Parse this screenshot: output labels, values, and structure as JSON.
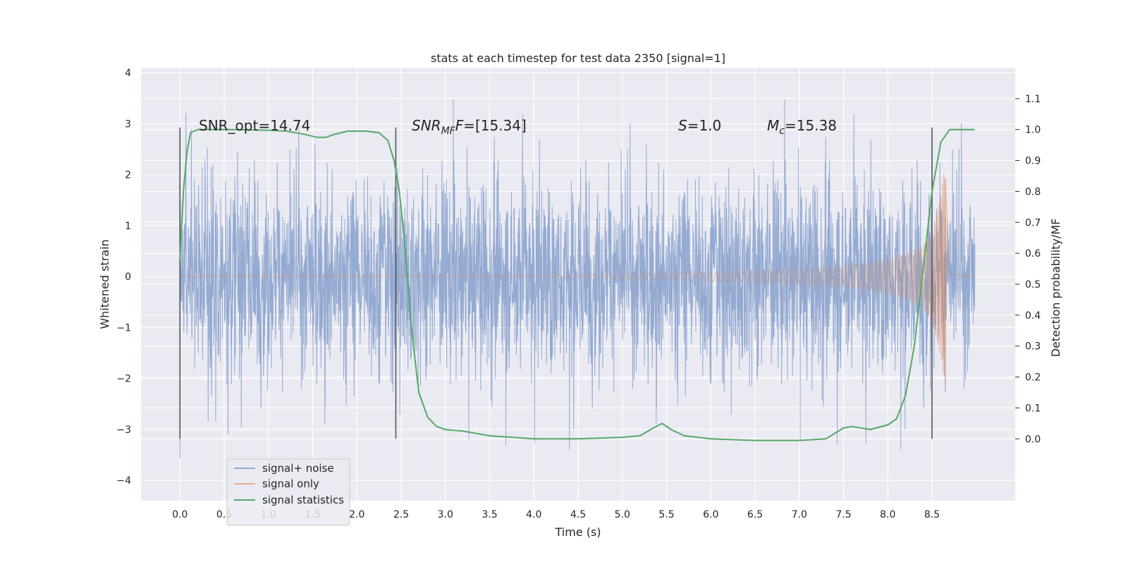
{
  "chart_data": {
    "type": "line",
    "title": "stats at each timestep for test data 2350 [signal=1]",
    "xlabel": "Time (s)",
    "ylabel": "Whitened strain",
    "y2label": "Detection probability/MF",
    "xlim": [
      -0.44,
      9.44
    ],
    "ylim": [
      -4.4,
      4.1
    ],
    "y2lim": [
      -0.2,
      1.2
    ],
    "xticks": [
      "0.0",
      "0.5",
      "1.0",
      "1.5",
      "2.0",
      "2.5",
      "3.0",
      "3.5",
      "4.0",
      "4.5",
      "5.0",
      "5.5",
      "6.0",
      "6.5",
      "7.0",
      "7.5",
      "8.0",
      "8.5"
    ],
    "yticks": [
      "−4",
      "−3",
      "−2",
      "−1",
      "0",
      "1",
      "2",
      "3",
      "4"
    ],
    "y2ticks": [
      "0.0",
      "0.1",
      "0.2",
      "0.3",
      "0.4",
      "0.5",
      "0.6",
      "0.7",
      "0.8",
      "0.9",
      "1.0",
      "1.1"
    ],
    "grid": true,
    "legend_position": "lower-left",
    "annotations": {
      "snr_opt": "SNR_opt=14.74",
      "snr_mf_sym": "SNR",
      "snr_mf_sub": "MF",
      "snr_mf_val": "=[15.34]",
      "s_sym": "S",
      "s_val": "=1.0",
      "mc_sym": "M",
      "mc_sub": "c",
      "mc_val": "=15.38"
    },
    "window_markers_x": [
      0.0,
      2.44,
      8.5
    ],
    "series": [
      {
        "name": "signal+ noise",
        "color": "#8fa6cf",
        "x_range": [
          0.0,
          8.98
        ],
        "envelope_typical": [
          -1.6,
          1.6
        ],
        "envelope_extreme": [
          -4.0,
          3.65
        ]
      },
      {
        "name": "signal only",
        "color": "#dd8452",
        "x": [
          0.0,
          4.0,
          5.0,
          6.0,
          6.5,
          7.0,
          7.5,
          8.0,
          8.2,
          8.4,
          8.5,
          8.6,
          8.65,
          8.7,
          8.98
        ],
        "amplitude": [
          0.0,
          0.02,
          0.05,
          0.1,
          0.12,
          0.15,
          0.2,
          0.33,
          0.45,
          0.6,
          0.9,
          1.6,
          2.25,
          0.05,
          0.0
        ]
      },
      {
        "name": "signal statistics",
        "color": "#55a868",
        "x": [
          0.0,
          0.04,
          0.08,
          0.12,
          0.2,
          0.35,
          0.6,
          0.8,
          1.0,
          1.2,
          1.4,
          1.55,
          1.65,
          1.75,
          1.9,
          2.1,
          2.25,
          2.35,
          2.42,
          2.48,
          2.55,
          2.62,
          2.7,
          2.8,
          2.9,
          3.0,
          3.2,
          3.5,
          4.0,
          4.5,
          5.0,
          5.2,
          5.35,
          5.45,
          5.55,
          5.7,
          6.0,
          6.5,
          7.0,
          7.3,
          7.5,
          7.6,
          7.8,
          8.0,
          8.1,
          8.2,
          8.3,
          8.4,
          8.5,
          8.6,
          8.7,
          8.8,
          8.98
        ],
        "values": [
          0.58,
          0.8,
          0.93,
          0.99,
          1.0,
          1.0,
          1.0,
          0.999,
          0.998,
          0.995,
          0.985,
          0.975,
          0.975,
          0.985,
          0.995,
          0.995,
          0.99,
          0.965,
          0.9,
          0.8,
          0.6,
          0.35,
          0.15,
          0.07,
          0.04,
          0.03,
          0.025,
          0.01,
          0.0,
          0.0,
          0.005,
          0.01,
          0.035,
          0.05,
          0.03,
          0.01,
          0.0,
          -0.005,
          -0.005,
          0.0,
          0.035,
          0.04,
          0.03,
          0.045,
          0.065,
          0.14,
          0.3,
          0.55,
          0.8,
          0.96,
          1.0,
          1.0,
          1.0
        ]
      }
    ]
  }
}
